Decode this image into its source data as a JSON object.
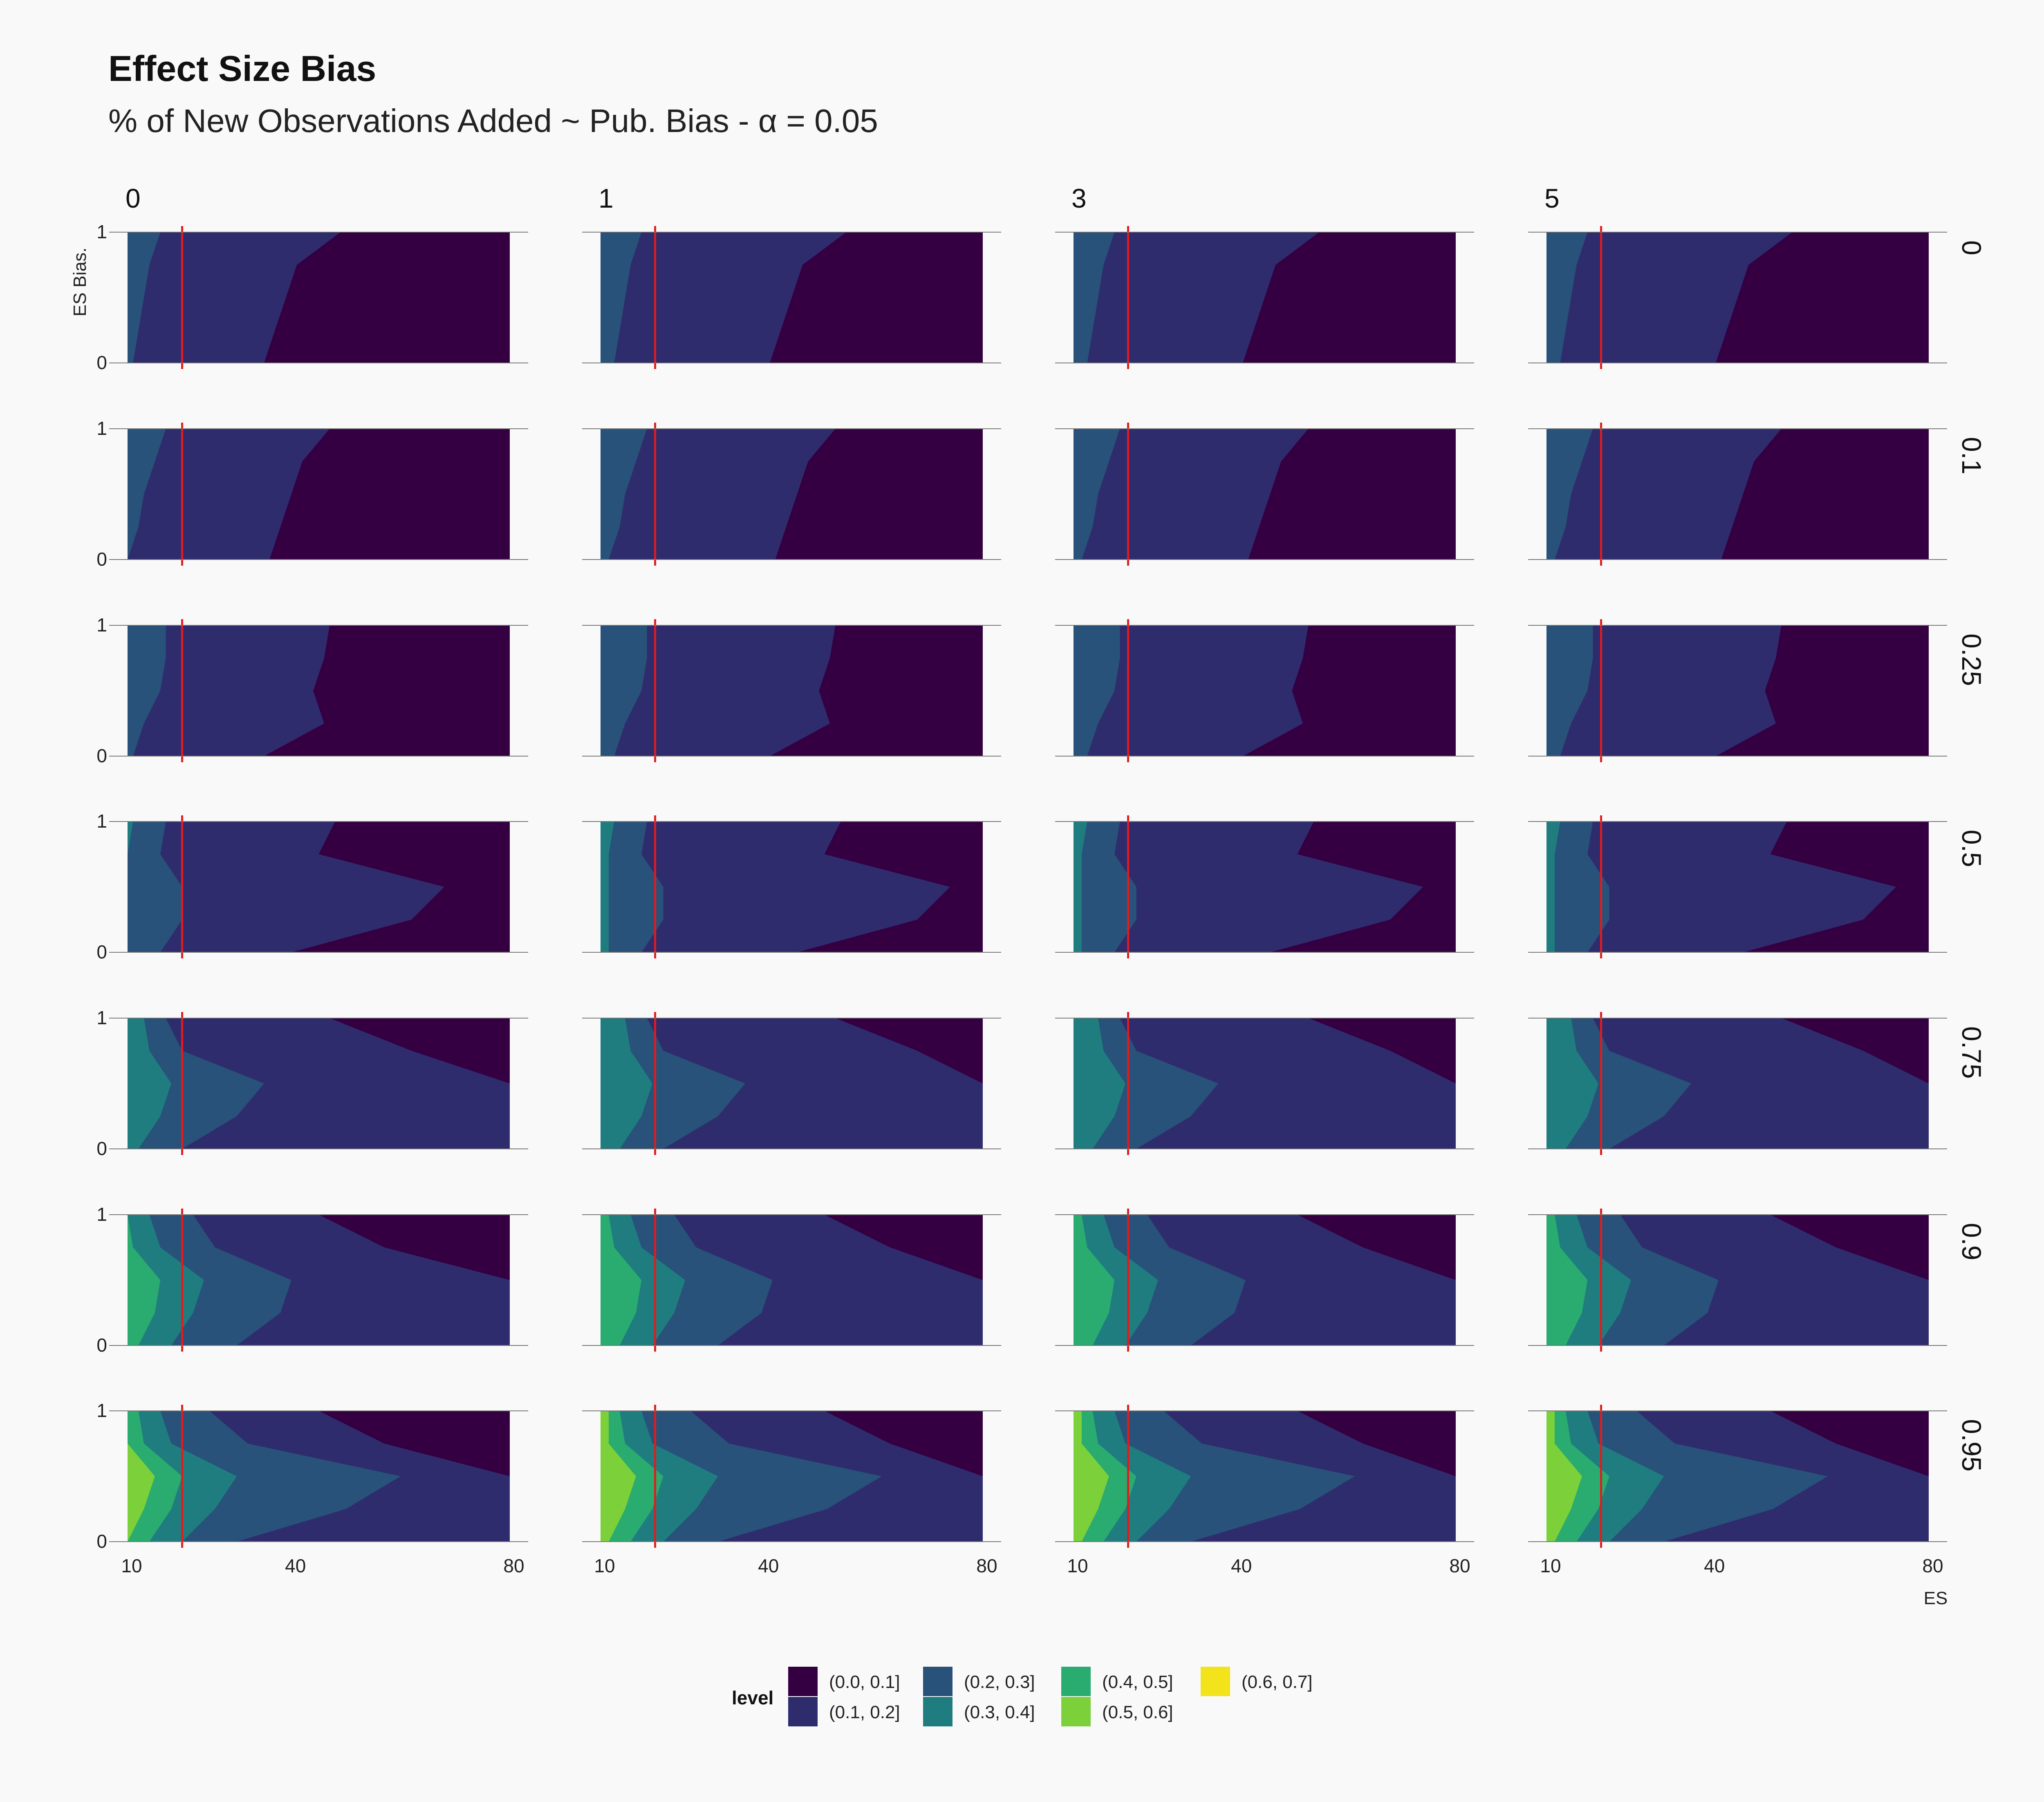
{
  "header": {
    "title": "Effect Size Bias",
    "subtitle": "% of New Observations Added ~ Pub. Bias - α = 0.05"
  },
  "chart_data": {
    "type": "heatmap",
    "subtype": "filled contour, faceted grid",
    "x_label": "ES",
    "y_label": "ES Bias.",
    "x_ticks": [
      "10",
      "40",
      "80"
    ],
    "y_ticks": [
      "0",
      "1"
    ],
    "xlim": [
      10,
      80
    ],
    "ylim": [
      0,
      1
    ],
    "reference_line": {
      "x": 20,
      "color": "#e41a1c"
    },
    "column_facets": [
      "0",
      "1",
      "3",
      "5"
    ],
    "row_facets": [
      "0",
      "0.1",
      "0.25",
      "0.5",
      "0.75",
      "0.9",
      "0.95"
    ],
    "legend": {
      "title": "level",
      "position": "bottom",
      "items": [
        {
          "label": "(0.0, 0.1]",
          "color": "#340042"
        },
        {
          "label": "(0.1, 0.2]",
          "color": "#2f2c6e"
        },
        {
          "label": "(0.2, 0.3]",
          "color": "#285279"
        },
        {
          "label": "(0.3, 0.4]",
          "color": "#1f7d80"
        },
        {
          "label": "(0.4, 0.5]",
          "color": "#2aab6f"
        },
        {
          "label": "(0.5, 0.6]",
          "color": "#7cd13a"
        },
        {
          "label": "(0.6, 0.7]",
          "color": "#f2e31b"
        }
      ]
    },
    "contour_boundaries_description": "For each row facet, x-position (in ES units) of each level boundary at sampled ES Bias values y = [0, 0.25, 0.5, 0.75, 1]; column facets shift boundaries slightly.",
    "rows": [
      {
        "facet": "0",
        "b_0.1": [
          35,
          37,
          39,
          41,
          49
        ],
        "b_0.2": [
          11,
          12,
          13,
          14,
          16
        ],
        "b_0.3": null,
        "b_0.4": null,
        "b_0.5": null,
        "b_0.6": null
      },
      {
        "facet": "0.1",
        "b_0.1": [
          36,
          38,
          40,
          42,
          47
        ],
        "b_0.2": [
          10,
          12,
          13,
          15,
          17
        ],
        "b_0.3": null,
        "b_0.4": null,
        "b_0.5": null,
        "b_0.6": null
      },
      {
        "facet": "0.25",
        "b_0.1": [
          35,
          46,
          44,
          46,
          47
        ],
        "b_0.2": [
          11,
          13,
          16,
          17,
          17
        ],
        "b_0.3": null,
        "b_0.4": null,
        "b_0.5": null,
        "b_0.6": null
      },
      {
        "facet": "0.5",
        "b_0.1": [
          40,
          62,
          68,
          45,
          48
        ],
        "b_0.2": [
          16,
          20,
          20,
          16,
          17
        ],
        "b_0.3": [
          10,
          10,
          10,
          10,
          11
        ],
        "b_0.4": null,
        "b_0.5": null,
        "b_0.6": null
      },
      {
        "facet": "0.75",
        "b_0.1": [
          80,
          80,
          80,
          62,
          47
        ],
        "b_0.2": [
          20,
          30,
          35,
          20,
          17
        ],
        "b_0.3": [
          12,
          16,
          18,
          14,
          13
        ],
        "b_0.4": null,
        "b_0.5": null,
        "b_0.6": null
      },
      {
        "facet": "0.9",
        "b_0.1": [
          80,
          80,
          80,
          57,
          45
        ],
        "b_0.2": [
          30,
          38,
          40,
          26,
          22
        ],
        "b_0.3": [
          18,
          22,
          24,
          16,
          14
        ],
        "b_0.4": [
          12,
          15,
          16,
          11,
          10
        ],
        "b_0.5": null,
        "b_0.6": null
      },
      {
        "facet": "0.95",
        "b_0.1": [
          80,
          80,
          80,
          57,
          45
        ],
        "b_0.2": [
          30,
          50,
          60,
          32,
          25
        ],
        "b_0.3": [
          20,
          26,
          30,
          18,
          16
        ],
        "b_0.4": [
          14,
          18,
          20,
          13,
          12
        ],
        "b_0.5": [
          10,
          13,
          15,
          10,
          10
        ],
        "b_0.6": null
      }
    ],
    "column_shift": [
      0,
      3,
      3,
      3
    ]
  }
}
